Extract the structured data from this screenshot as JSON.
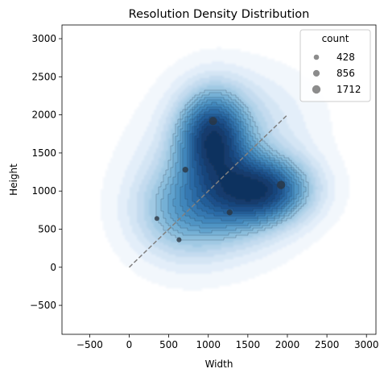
{
  "chart_data": {
    "type": "scatter",
    "title": "Resolution Density Distribution",
    "xlabel": "Width",
    "ylabel": "Height",
    "xlim": [
      -850,
      3120
    ],
    "ylim": [
      -880,
      3180
    ],
    "x_ticks": [
      -500,
      0,
      500,
      1000,
      1500,
      2000,
      2500,
      3000
    ],
    "y_ticks": [
      -500,
      0,
      500,
      1000,
      1500,
      2000,
      2500,
      3000
    ],
    "x_tick_labels": [
      "−500",
      "0",
      "500",
      "1000",
      "1500",
      "2000",
      "2500",
      "3000"
    ],
    "y_tick_labels": [
      "−500",
      "0",
      "500",
      "1000",
      "1500",
      "2000",
      "2500",
      "3000"
    ],
    "grid": false,
    "background": "kde-density",
    "colormap": "Blues",
    "points": [
      {
        "x": 350,
        "y": 640,
        "count": 300
      },
      {
        "x": 630,
        "y": 360,
        "count": 320
      },
      {
        "x": 710,
        "y": 1280,
        "count": 600
      },
      {
        "x": 1270,
        "y": 720,
        "count": 600
      },
      {
        "x": 1060,
        "y": 1920,
        "count": 1600
      },
      {
        "x": 1920,
        "y": 1080,
        "count": 1712
      }
    ],
    "reference_line": {
      "x": [
        0,
        2000
      ],
      "y": [
        0,
        2000
      ],
      "style": "dashed",
      "color": "#808080"
    },
    "legend": {
      "title": "count",
      "placement": "top-right",
      "entries": [
        {
          "label": "428",
          "value": 428
        },
        {
          "label": "856",
          "value": 856
        },
        {
          "label": "1712",
          "value": 1712
        }
      ]
    },
    "colors": {
      "points": "#2a3440",
      "legend_marker": "#8c8c8c",
      "contour_line": "#1a2a3a"
    }
  }
}
